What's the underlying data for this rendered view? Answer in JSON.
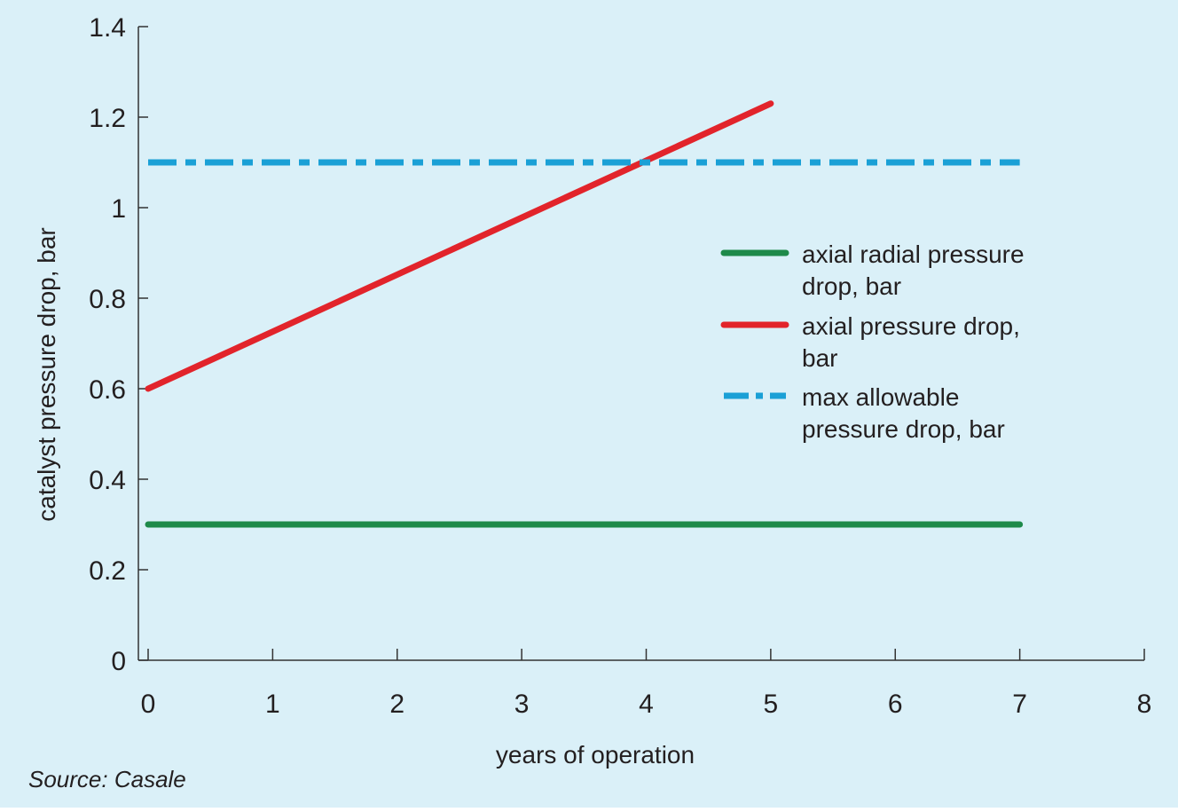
{
  "colors": {
    "background": "#daf0f8",
    "axis": "#333333",
    "text": "#231f20",
    "series_axial_radial": "#1e8a4a",
    "series_axial": "#e2242b",
    "series_max_allowable": "#1aa0d6"
  },
  "source_note": "Source: Casale",
  "chart_data": {
    "type": "line",
    "title": "",
    "xlabel": "years of operation",
    "ylabel": "catalyst pressure drop, bar",
    "xlim": [
      0,
      8
    ],
    "ylim": [
      0,
      1.4
    ],
    "x_ticks": [
      "0",
      "1",
      "2",
      "3",
      "4",
      "5",
      "6",
      "7",
      "8"
    ],
    "y_ticks": [
      "0",
      "0.2",
      "0.4",
      "0.6",
      "0.8",
      "1",
      "1.2",
      "1.4"
    ],
    "grid": false,
    "legend_position": "right",
    "series": [
      {
        "name": "axial radial pressure drop, bar",
        "legend_lines": [
          "axial radial pressure",
          "drop, bar"
        ],
        "style": "solid",
        "color": "#1e8a4a",
        "points": [
          [
            0,
            0.3
          ],
          [
            7,
            0.3
          ]
        ]
      },
      {
        "name": "axial pressure drop, bar",
        "legend_lines": [
          "axial pressure drop,",
          "bar"
        ],
        "style": "solid",
        "color": "#e2242b",
        "points": [
          [
            0,
            0.6
          ],
          [
            5,
            1.23
          ]
        ]
      },
      {
        "name": "max allowable pressure drop, bar",
        "legend_lines": [
          "max allowable",
          "pressure drop, bar"
        ],
        "style": "dash-dot",
        "color": "#1aa0d6",
        "points": [
          [
            0,
            1.1
          ],
          [
            7,
            1.1
          ]
        ]
      }
    ]
  }
}
